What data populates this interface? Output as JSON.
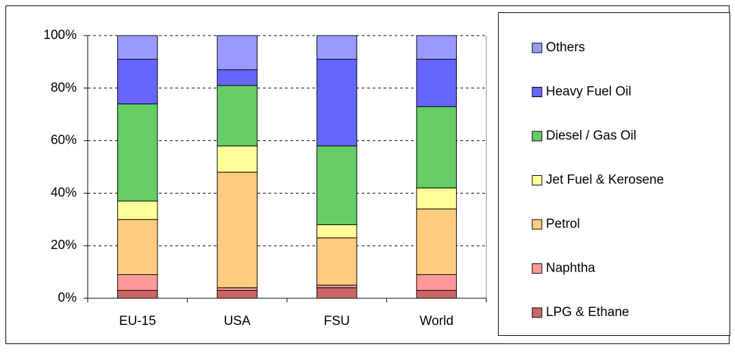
{
  "chart_data": {
    "type": "stacked_bar",
    "categories": [
      "EU-15",
      "USA",
      "FSU",
      "World"
    ],
    "series": [
      {
        "name": "LPG & Ethane",
        "color": "#cc6666",
        "values": [
          3,
          3,
          4,
          3
        ]
      },
      {
        "name": "Naphtha",
        "color": "#ff9999",
        "values": [
          6,
          1,
          1,
          6
        ]
      },
      {
        "name": "Petrol",
        "color": "#ffcc80",
        "values": [
          21,
          44,
          18,
          25
        ]
      },
      {
        "name": "Jet Fuel & Kerosene",
        "color": "#ffff99",
        "values": [
          7,
          10,
          5,
          8
        ]
      },
      {
        "name": "Diesel / Gas Oil",
        "color": "#66cc66",
        "values": [
          37,
          23,
          30,
          31
        ]
      },
      {
        "name": "Heavy Fuel Oil",
        "color": "#6666ff",
        "values": [
          17,
          6,
          33,
          18
        ]
      },
      {
        "name": "Others",
        "color": "#9999ff",
        "values": [
          9,
          13,
          9,
          9
        ]
      }
    ],
    "ylim": [
      0,
      100
    ],
    "yticks": [
      {
        "value": 0,
        "label": "0%"
      },
      {
        "value": 20,
        "label": "20%"
      },
      {
        "value": 40,
        "label": "40%"
      },
      {
        "value": 60,
        "label": "60%"
      },
      {
        "value": 80,
        "label": "80%"
      },
      {
        "value": 100,
        "label": "100%"
      }
    ],
    "grid": true,
    "legend": "right"
  }
}
